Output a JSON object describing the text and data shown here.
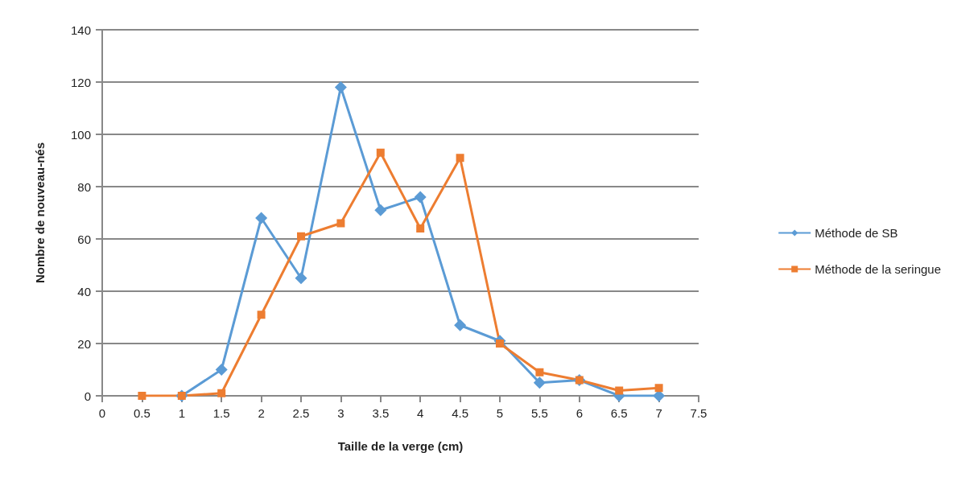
{
  "chart_data": {
    "type": "line",
    "xlabel": "Taille de la verge (cm)",
    "ylabel": "Nombre de nouveau-nés",
    "x": [
      0.5,
      1,
      1.5,
      2,
      2.5,
      3,
      3.5,
      4,
      4.5,
      5,
      5.5,
      6,
      6.5,
      7
    ],
    "series": [
      {
        "name": "Méthode de SB",
        "color": "#5b9bd5",
        "marker": "diamond",
        "values": [
          null,
          0,
          10,
          68,
          45,
          118,
          71,
          76,
          27,
          21,
          5,
          6,
          0,
          0
        ]
      },
      {
        "name": "Méthode de la seringue",
        "color": "#ed7d31",
        "marker": "square",
        "values": [
          0,
          0,
          1,
          31,
          61,
          66,
          93,
          64,
          91,
          20,
          9,
          6,
          2,
          3
        ]
      }
    ],
    "xlim": [
      0,
      7.5
    ],
    "xticks": [
      0,
      0.5,
      1,
      1.5,
      2,
      2.5,
      3,
      3.5,
      4,
      4.5,
      5,
      5.5,
      6,
      6.5,
      7,
      7.5
    ],
    "ylim": [
      0,
      140
    ],
    "yticks": [
      0,
      20,
      40,
      60,
      80,
      100,
      120,
      140
    ],
    "grid": "y",
    "legend": "right"
  }
}
